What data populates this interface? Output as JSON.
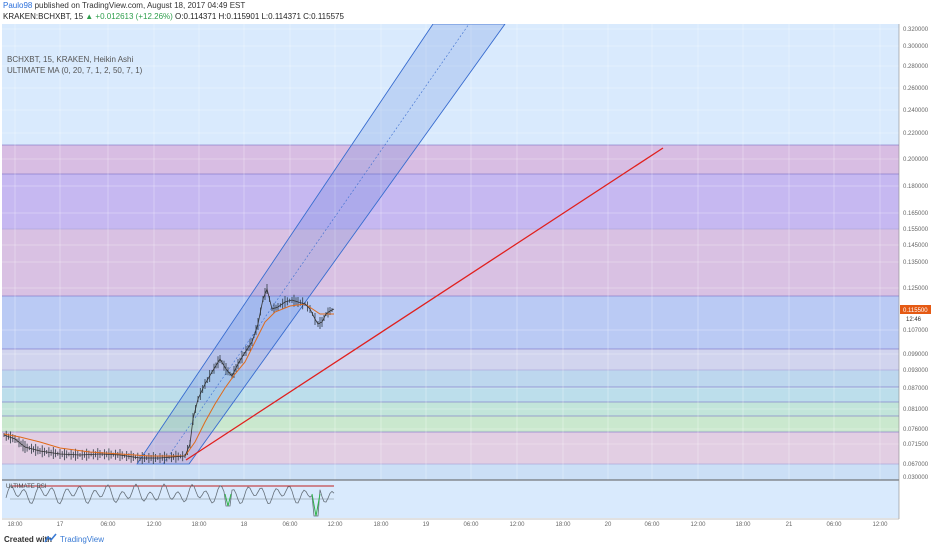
{
  "header": {
    "user": "Paulo98",
    "publish_text": "published on TradingView.com, August 18, 2017 04:49 EST",
    "symbol_line": "KRAKEN:BCHXBT, 15",
    "change_text": "▲ +0.012613 (+12.26%)",
    "ohlc": "O:0.114371 H:0.115901 L:0.114371 C:0.115575"
  },
  "legend": {
    "line1": "BCHXBT, 15, KRAKEN, Heikin Ashi",
    "line2": "ULTIMATE MA (0, 20, 7, 1, 2, 50, 7, 1)",
    "rsi_label": "ULTIMATE RSI"
  },
  "price_axis": {
    "labels": [
      "0.320000",
      "0.300000",
      "0.280000",
      "0.260000",
      "0.240000",
      "0.220000",
      "0.200000",
      "0.180000",
      "0.165000",
      "0.155000",
      "0.145000",
      "0.135000",
      "0.125000",
      "0.107000",
      "0.099000",
      "0.093000",
      "0.087000",
      "0.081000",
      "0.076000",
      "0.071500",
      "0.067000"
    ],
    "last_price": "0.115500",
    "countdown": "12:46",
    "rsi_label": "0.030000"
  },
  "time_axis": {
    "labels": [
      "18:00",
      "17",
      "06:00",
      "12:00",
      "18:00",
      "18",
      "06:00",
      "12:00",
      "18:00",
      "19",
      "06:00",
      "12:00",
      "18:00",
      "20",
      "06:00",
      "12:00",
      "18:00",
      "21",
      "06:00",
      "12:00"
    ]
  },
  "footer": {
    "created_with": "Created with",
    "brand": "TradingView"
  },
  "colors": {
    "price_line": "#e06a1a",
    "trend_line": "#e0201e",
    "channel": "#3c6fd0",
    "last_price_badge": "#e55a14"
  },
  "chart_data": {
    "type": "line",
    "title": "BCHXBT, 15, KRAKEN, Heikin Ashi",
    "series": [
      {
        "name": "BCHXBT",
        "x": [
          "16 17:00",
          "16 22:00",
          "17 04:00",
          "17 10:00",
          "17 14:00",
          "17 16:00",
          "17 18:00",
          "17 21:00",
          "17 23:30",
          "18 03:00",
          "18 06:00",
          "18 09:00",
          "18 10:00",
          "18 11:30"
        ],
        "values": [
          0.0725,
          0.0695,
          0.0685,
          0.068,
          0.0675,
          0.0685,
          0.088,
          0.096,
          0.101,
          0.12,
          0.121,
          0.115,
          0.11,
          0.1155
        ]
      }
    ],
    "ylim": [
      0.063,
      0.32
    ]
  }
}
